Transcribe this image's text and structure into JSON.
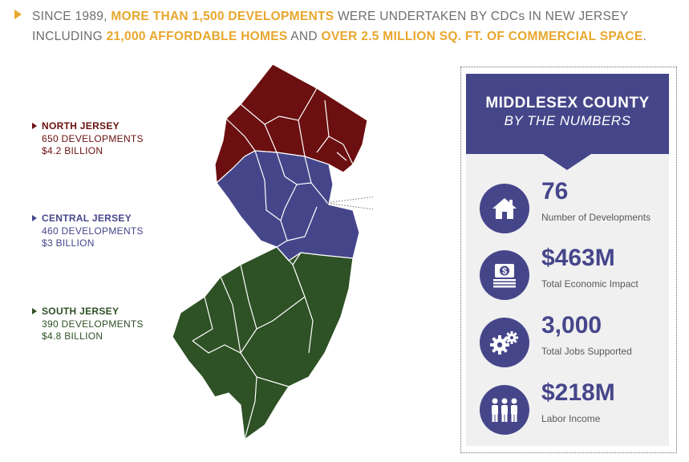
{
  "headline": {
    "line1": [
      {
        "text": "SINCE 1989, ",
        "hl": false
      },
      {
        "text": "MORE THAN 1,500 DEVELOPMENTS",
        "hl": true
      },
      {
        "text": " WERE UNDERTAKEN BY CDCs IN NEW JERSEY",
        "hl": false
      }
    ],
    "line2": [
      {
        "text": "INCLUDING ",
        "hl": false
      },
      {
        "text": "21,000 AFFORDABLE HOMES",
        "hl": true
      },
      {
        "text": " AND ",
        "hl": false
      },
      {
        "text": "OVER 2.5 MILLION SQ. FT. OF COMMERCIAL SPACE",
        "hl": true
      },
      {
        "text": ".",
        "hl": false
      }
    ]
  },
  "regions": {
    "north": {
      "name": "NORTH JERSEY",
      "developments": "650 DEVELOPMENTS",
      "amount": "$4.2 BILLION",
      "color": "#6b0f10"
    },
    "central": {
      "name": "CENTRAL JERSEY",
      "developments": "460 DEVELOPMENTS",
      "amount": "$3 BILLION",
      "color": "#45468a"
    },
    "south": {
      "name": "SOUTH JERSEY",
      "developments": "390 DEVELOPMENTS",
      "amount": "$4.8 BILLION",
      "color": "#2e5125"
    }
  },
  "panel": {
    "title": "MIDDLESEX COUNTY",
    "subtitle": "BY THE NUMBERS",
    "stats": [
      {
        "value": "76",
        "label": "Number of Developments",
        "icon": "house-icon"
      },
      {
        "value": "$463M",
        "label": "Total Economic Impact",
        "icon": "money-icon"
      },
      {
        "value": "3,000",
        "label": "Total Jobs Supported",
        "icon": "gears-icon"
      },
      {
        "value": "$218M",
        "label": "Labor Income",
        "icon": "people-icon"
      }
    ]
  },
  "colors": {
    "accent": "#e8a72d",
    "panel_blue": "#45468a",
    "text_gray": "#6d6e70"
  }
}
